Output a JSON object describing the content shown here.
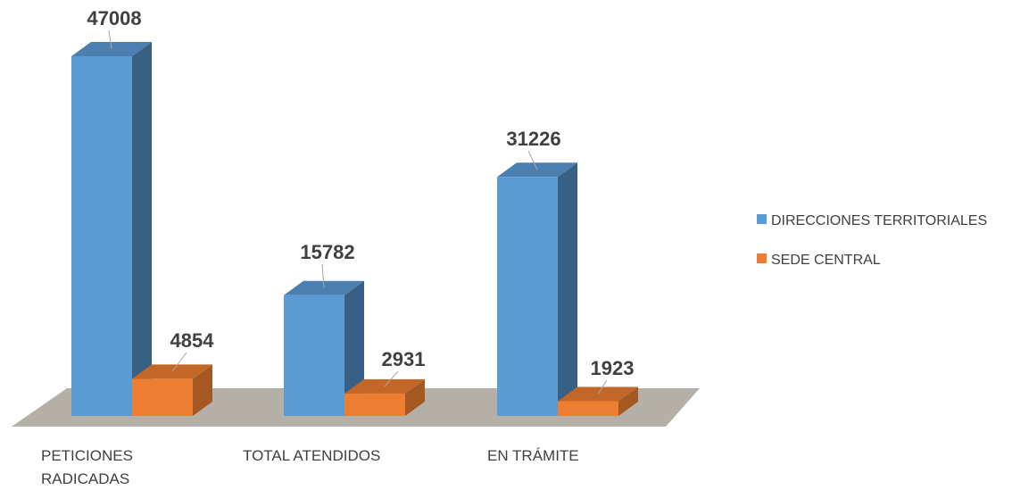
{
  "chart_data": {
    "type": "bar",
    "style": "3d-clustered-column",
    "categories": [
      "PETICIONES RADICADAS",
      "TOTAL ATENDIDOS",
      "EN TRÁMITE"
    ],
    "category_lines": [
      [
        "PETICIONES",
        "RADICADAS"
      ],
      [
        "TOTAL ATENDIDOS"
      ],
      [
        "EN TRÁMITE"
      ]
    ],
    "series": [
      {
        "name": "DIRECCIONES TERRITORIALES",
        "values": [
          47008,
          15782,
          31226
        ],
        "color": "#5B9BD5"
      },
      {
        "name": "SEDE CENTRAL",
        "values": [
          4854,
          2931,
          1923
        ],
        "color": "#ED7D31"
      }
    ],
    "data_labels": true,
    "ylim": [
      0,
      47008
    ],
    "grid": false,
    "legend_position": "right",
    "floor_color": "#B4B0A8"
  }
}
